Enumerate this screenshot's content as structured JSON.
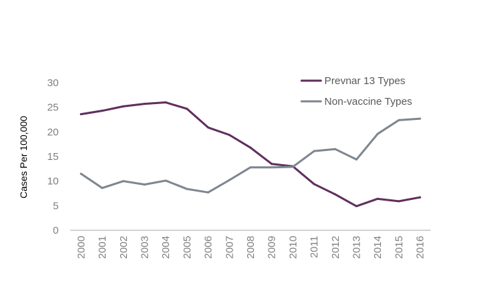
{
  "chart_data": {
    "type": "line",
    "title": "",
    "xlabel": "",
    "ylabel": "Cases Per 100,000",
    "ylim": [
      0,
      30
    ],
    "yticks": [
      0,
      5,
      10,
      15,
      20,
      25,
      30
    ],
    "grid": false,
    "legend_position": "top-right",
    "categories": [
      "2000",
      "2001",
      "2002",
      "2003",
      "2004",
      "2005",
      "2006",
      "2007",
      "2008",
      "2009",
      "2010",
      "2011",
      "2012",
      "2013",
      "2014",
      "2015",
      "2016"
    ],
    "series": [
      {
        "name": "Prevnar 13 Types",
        "color": "#5f2f5f",
        "values": [
          23.6,
          24.3,
          25.2,
          25.7,
          26.0,
          24.7,
          20.9,
          19.4,
          16.8,
          13.5,
          13.0,
          9.4,
          7.3,
          4.9,
          6.4,
          5.9,
          6.7
        ]
      },
      {
        "name": "Non-vaccine Types",
        "color": "#7f8690",
        "values": [
          11.5,
          8.6,
          10.0,
          9.3,
          10.1,
          8.4,
          7.7,
          10.2,
          12.8,
          12.8,
          12.9,
          16.1,
          16.5,
          14.4,
          19.6,
          22.4,
          22.7
        ]
      }
    ],
    "axis_color": "#a6a6a6"
  }
}
